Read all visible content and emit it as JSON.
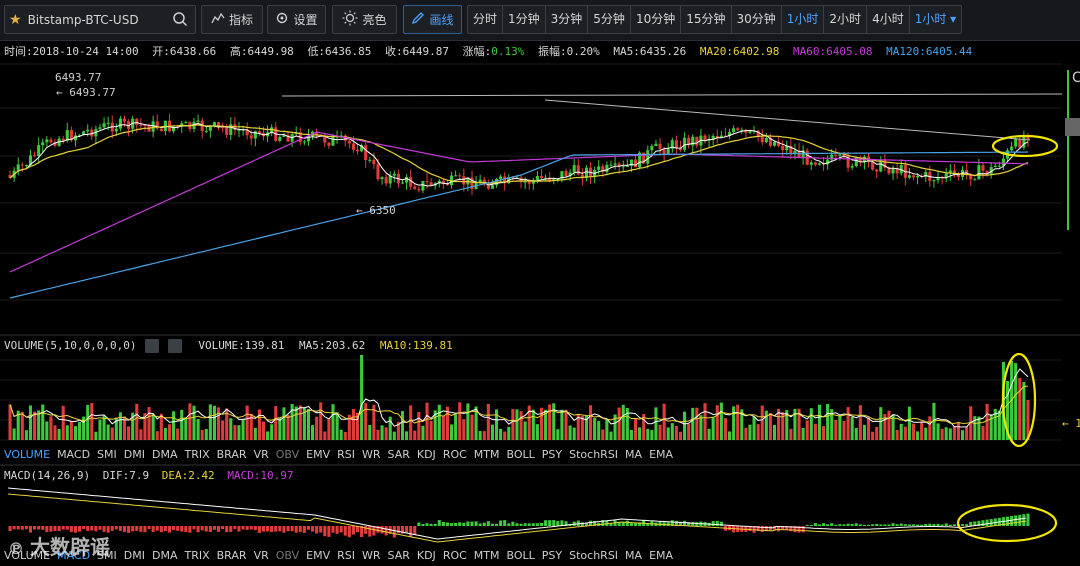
{
  "toolbar": {
    "symbol": "Bitstamp-BTC-USD",
    "indicators_label": "指标",
    "settings_label": "设置",
    "theme_label": "亮色",
    "draw_label": "画线",
    "periods": [
      "分时",
      "1分钟",
      "3分钟",
      "5分钟",
      "10分钟",
      "15分钟",
      "30分钟",
      "1小时",
      "2小时",
      "4小时"
    ],
    "active_period": "1小时",
    "period_dropdown": "1小时"
  },
  "info": {
    "time": "时间:2018-10-24 14:00",
    "open": "开:6438.66",
    "high": "高:6449.98",
    "low": "低:6436.85",
    "close": "收:6449.87",
    "change": "涨幅:",
    "change_val": "0.13%",
    "amplitude": "振幅:0.20%",
    "ma5": "MA5:6435.26",
    "ma20": "MA20:6402.98",
    "ma60": "MA60:6405.08",
    "ma120": "MA120:6405.44"
  },
  "price_annotations": {
    "high_label": "6493.77",
    "high_marker": "← 6493.77",
    "low_marker": "← 6350",
    "right_axis_partial": "C"
  },
  "volume": {
    "title": "VOLUME(5,10,0,0,0,0)",
    "value": "VOLUME:139.81",
    "ma5": "MA5:203.62",
    "ma10": "MA10:139.81",
    "right_marker": "← 1"
  },
  "tabs": [
    "VOLUME",
    "MACD",
    "SMI",
    "DMI",
    "DMA",
    "TRIX",
    "BRAR",
    "VR",
    "OBV",
    "EMV",
    "RSI",
    "WR",
    "SAR",
    "KDJ",
    "ROC",
    "MTM",
    "BOLL",
    "PSY",
    "StochRSI",
    "MA",
    "EMA"
  ],
  "tabs_active_top": "VOLUME",
  "tabs_active_bottom": "MACD",
  "macd": {
    "title": "MACD(14,26,9)",
    "dif": "DIF:7.9",
    "dea": "DEA:2.42",
    "macd": "MACD:10.97"
  },
  "watermark": "大数辟谣",
  "colors": {
    "up": "#3ec93e",
    "down": "#e23b3b",
    "ma5": "#ffffff",
    "ma20": "#e8d33a",
    "ma60": "#c43ad8",
    "ma120": "#4aa3e8",
    "accent": "#4da3ff",
    "highlight": "#f2e600"
  },
  "chart_data": {
    "type": "candlestick",
    "interval": "1小时",
    "price_ref": {
      "high": 6493.77,
      "low": 6350
    },
    "volume_ref": {
      "last": 139.81,
      "ma5": 203.62,
      "ma10": 139.81
    },
    "macd_ref": {
      "dif": 7.9,
      "dea": 2.42,
      "macd": 10.97
    }
  }
}
